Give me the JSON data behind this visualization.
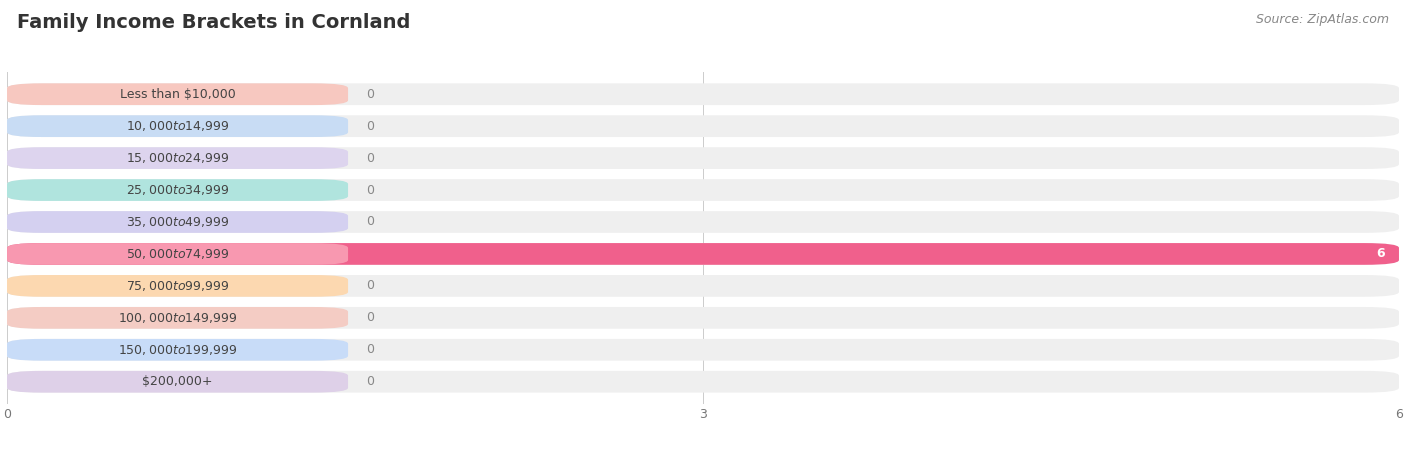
{
  "title": "Family Income Brackets in Cornland",
  "source_text": "Source: ZipAtlas.com",
  "categories": [
    "Less than $10,000",
    "$10,000 to $14,999",
    "$15,000 to $24,999",
    "$25,000 to $34,999",
    "$35,000 to $49,999",
    "$50,000 to $74,999",
    "$75,000 to $99,999",
    "$100,000 to $149,999",
    "$150,000 to $199,999",
    "$200,000+"
  ],
  "values": [
    0,
    0,
    0,
    0,
    0,
    6,
    0,
    0,
    0,
    0
  ],
  "bar_colors": [
    "#f2aea6",
    "#aac4e8",
    "#c4b0dc",
    "#7ed4cc",
    "#b4b0e0",
    "#f0608c",
    "#f8c88c",
    "#f0b0a8",
    "#a8c8f0",
    "#ccb8d8"
  ],
  "label_bg_colors": [
    "#f7c8c0",
    "#c8dcf4",
    "#ddd4ee",
    "#b0e4de",
    "#d4d0f0",
    "#f898b0",
    "#fcd8b0",
    "#f4ccc4",
    "#c8dcf8",
    "#ded0e8"
  ],
  "xlim": [
    0,
    6
  ],
  "xticks": [
    0,
    3,
    6
  ],
  "background_color": "#ffffff",
  "bar_bg_color": "#efefef",
  "title_fontsize": 14,
  "source_fontsize": 9,
  "label_fontsize": 9,
  "value_fontsize": 9
}
